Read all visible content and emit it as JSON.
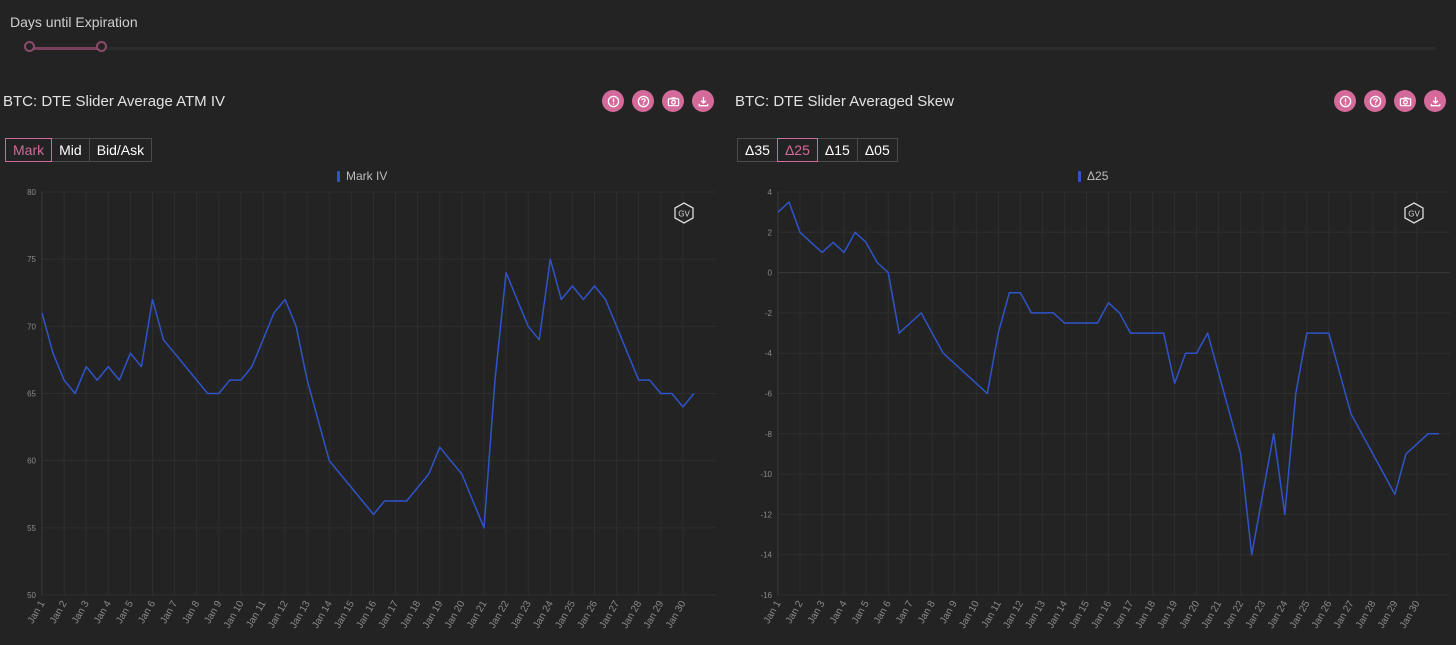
{
  "slider": {
    "label": "Days until Expiration"
  },
  "colors": {
    "line": "#2f54c9",
    "accent": "#d36a9a",
    "grid": "#2e2e2e",
    "tick": "#8a8a8a"
  },
  "left_panel": {
    "title": "BTC: DTE Slider Average ATM IV",
    "icons": [
      "info-icon",
      "help-icon",
      "camera-icon",
      "download-icon"
    ],
    "buttons": [
      {
        "label": "Mark",
        "active": true
      },
      {
        "label": "Mid",
        "active": false
      },
      {
        "label": "Bid/Ask",
        "active": false
      }
    ],
    "legend": "Mark IV",
    "watermark": "GV"
  },
  "right_panel": {
    "title": "BTC: DTE Slider Averaged Skew",
    "icons": [
      "info-icon",
      "help-icon",
      "camera-icon",
      "download-icon"
    ],
    "buttons": [
      {
        "label": "Δ35",
        "active": false
      },
      {
        "label": "Δ25",
        "active": true
      },
      {
        "label": "Δ15",
        "active": false
      },
      {
        "label": "Δ05",
        "active": false
      }
    ],
    "legend": "Δ25",
    "watermark": "GV"
  },
  "chart_data": [
    {
      "type": "line",
      "series": [
        {
          "name": "Mark IV",
          "x": [
            1,
            1.5,
            2,
            2.5,
            3,
            3.5,
            4,
            4.5,
            5,
            5.5,
            6,
            6.5,
            7,
            7.5,
            8,
            8.5,
            9,
            9.5,
            10,
            10.5,
            11,
            11.5,
            12,
            12.5,
            13,
            13.5,
            14,
            14.5,
            15,
            15.5,
            16,
            16.5,
            17,
            17.5,
            18,
            18.5,
            19,
            19.5,
            20,
            20.5,
            21,
            21.5,
            22,
            22.5,
            23,
            23.5,
            24,
            24.5,
            25,
            25.5,
            26,
            26.5,
            27,
            27.5,
            28,
            28.5,
            29,
            29.5,
            30,
            30.5
          ],
          "values": [
            71,
            68,
            66,
            65,
            67,
            66,
            67,
            66,
            68,
            67,
            72,
            69,
            68,
            67,
            66,
            65,
            65,
            66,
            66,
            67,
            69,
            71,
            72,
            70,
            66,
            63,
            60,
            59,
            58,
            57,
            56,
            57,
            57,
            57,
            58,
            59,
            61,
            60,
            59,
            57,
            55,
            66,
            74,
            72,
            70,
            69,
            75,
            72,
            73,
            72,
            73,
            72,
            70,
            68,
            66,
            66,
            65,
            65,
            64,
            65
          ]
        }
      ],
      "xticks": [
        "Jan 1",
        "Jan 2",
        "Jan 3",
        "Jan 4",
        "Jan 5",
        "Jan 6",
        "Jan 7",
        "Jan 8",
        "Jan 9",
        "Jan 10",
        "Jan 11",
        "Jan 12",
        "Jan 13",
        "Jan 14",
        "Jan 15",
        "Jan 16",
        "Jan 17",
        "Jan 18",
        "Jan 19",
        "Jan 20",
        "Jan 21",
        "Jan 22",
        "Jan 23",
        "Jan 24",
        "Jan 25",
        "Jan 26",
        "Jan 27",
        "Jan 28",
        "Jan 29",
        "Jan 30"
      ],
      "yticks": [
        50,
        55,
        60,
        65,
        70,
        75,
        80
      ],
      "ylim": [
        50,
        80
      ],
      "xlim": [
        1,
        31.5
      ]
    },
    {
      "type": "line",
      "series": [
        {
          "name": "Δ25",
          "x": [
            1,
            1.5,
            2,
            2.5,
            3,
            3.5,
            4,
            4.5,
            5,
            5.5,
            6,
            6.5,
            7,
            7.5,
            8,
            8.5,
            9,
            9.5,
            10,
            10.5,
            11,
            11.5,
            12,
            12.5,
            13,
            13.5,
            14,
            14.5,
            15,
            15.5,
            16,
            16.5,
            17,
            17.5,
            18,
            18.5,
            19,
            19.5,
            20,
            20.5,
            21,
            21.5,
            22,
            22.5,
            23,
            23.5,
            24,
            24.5,
            25,
            25.5,
            26,
            26.5,
            27,
            27.5,
            28,
            28.5,
            29,
            29.5,
            30,
            30.5,
            31
          ],
          "values": [
            3,
            3.5,
            2,
            1.5,
            1,
            1.5,
            1,
            2,
            1.5,
            0.5,
            0,
            -3,
            -2.5,
            -2,
            -3,
            -4,
            -4.5,
            -5,
            -5.5,
            -6,
            -3,
            -1,
            -1,
            -2,
            -2,
            -2,
            -2.5,
            -2.5,
            -2.5,
            -2.5,
            -1.5,
            -2,
            -3,
            -3,
            -3,
            -3,
            -5.5,
            -4,
            -4,
            -3,
            -5,
            -7,
            -9,
            -14,
            -11,
            -8,
            -12,
            -6,
            -3,
            -3,
            -3,
            -5,
            -7,
            -8,
            -9,
            -10,
            -11,
            -9,
            -8.5,
            -8,
            -8
          ]
        }
      ],
      "xticks": [
        "Jan 1",
        "Jan 2",
        "Jan 3",
        "Jan 4",
        "Jan 5",
        "Jan 6",
        "Jan 7",
        "Jan 8",
        "Jan 9",
        "Jan 10",
        "Jan 11",
        "Jan 12",
        "Jan 13",
        "Jan 14",
        "Jan 15",
        "Jan 16",
        "Jan 17",
        "Jan 18",
        "Jan 19",
        "Jan 20",
        "Jan 21",
        "Jan 22",
        "Jan 23",
        "Jan 24",
        "Jan 25",
        "Jan 26",
        "Jan 27",
        "Jan 28",
        "Jan 29",
        "Jan 30"
      ],
      "yticks": [
        -16,
        -14,
        -12,
        -10,
        -8,
        -6,
        -4,
        -2,
        0,
        2,
        4
      ],
      "ylim": [
        -16,
        4
      ],
      "xlim": [
        1,
        31.5
      ]
    }
  ]
}
